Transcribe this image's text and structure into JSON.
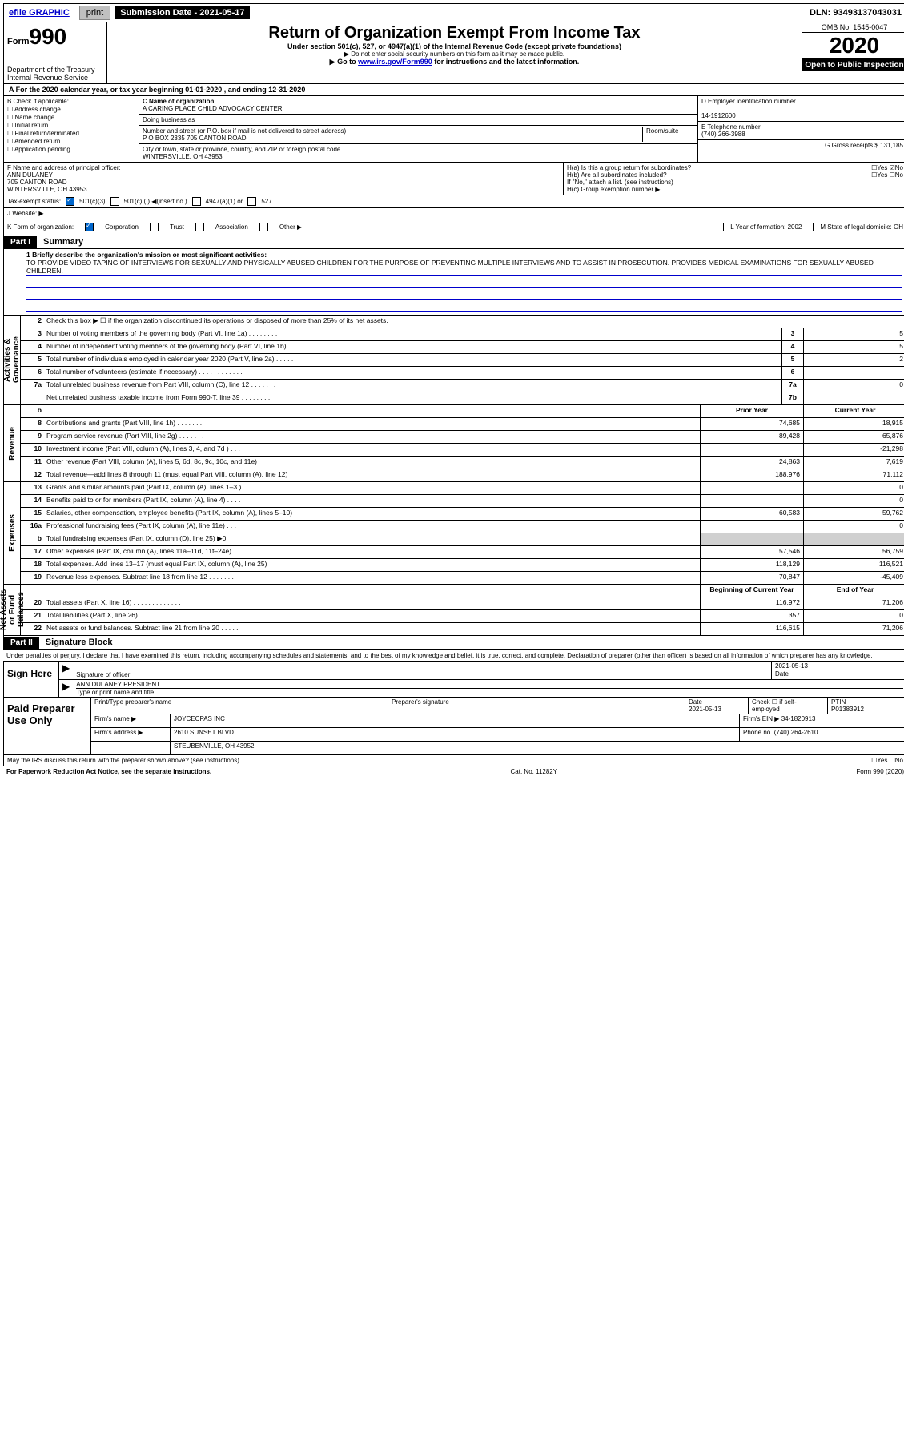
{
  "top": {
    "efile": "efile GRAPHIC",
    "print": "print",
    "sub_label": "Submission Date - 2021-05-17",
    "dln": "DLN: 93493137043031"
  },
  "hdr": {
    "form_small": "Form",
    "form_num": "990",
    "dept": "Department of the Treasury\nInternal Revenue Service",
    "title": "Return of Organization Exempt From Income Tax",
    "sub1": "Under section 501(c), 527, or 4947(a)(1) of the Internal Revenue Code (except private foundations)",
    "sub2": "▶ Do not enter social security numbers on this form as it may be made public.",
    "sub3a": "▶ Go to ",
    "sub3_link": "www.irs.gov/Form990",
    "sub3b": " for instructions and the latest information.",
    "omb": "OMB No. 1545-0047",
    "year": "2020",
    "otp": "Open to Public Inspection"
  },
  "rowA": "A For the 2020 calendar year, or tax year beginning 01-01-2020    , and ending 12-31-2020",
  "boxB": {
    "lbl": "B Check if applicable:",
    "addr": "Address change",
    "name": "Name change",
    "init": "Initial return",
    "final": "Final return/terminated",
    "amend": "Amended return",
    "app": "Application pending"
  },
  "boxC": {
    "name_lbl": "C Name of organization",
    "name": "A CARING PLACE CHILD ADVOCACY CENTER",
    "dba_lbl": "Doing business as",
    "street_lbl": "Number and street (or P.O. box if mail is not delivered to street address)",
    "room_lbl": "Room/suite",
    "street": "P O BOX 2335 705 CANTON ROAD",
    "city_lbl": "City or town, state or province, country, and ZIP or foreign postal code",
    "city": "WINTERSVILLE, OH  43953"
  },
  "boxDE": {
    "d_lbl": "D Employer identification number",
    "d_val": "14-1912600",
    "e_lbl": "E Telephone number",
    "e_val": "(740) 266-3988",
    "g_lbl": "G Gross receipts $",
    "g_val": "131,185"
  },
  "boxF": {
    "lbl": "F  Name and address of principal officer:",
    "name": "ANN DULANEY",
    "addr1": "705 CANTON ROAD",
    "addr2": "WINTERSVILLE, OH  43953"
  },
  "boxH": {
    "ha": "H(a)  Is this a group return for subordinates?",
    "hb": "H(b)  Are all subordinates included?",
    "hb_note": "If \"No,\" attach a list. (see instructions)",
    "hc": "H(c)  Group exemption number ▶",
    "yes": "Yes",
    "no": "No"
  },
  "rowI": {
    "lbl": "Tax-exempt status:",
    "o1": "501(c)(3)",
    "o2": "501(c) (   ) ◀(insert no.)",
    "o3": "4947(a)(1) or",
    "o4": "527"
  },
  "rowJ": {
    "lbl": "J   Website: ▶"
  },
  "rowK": {
    "lbl": "K Form of organization:",
    "corp": "Corporation",
    "trust": "Trust",
    "assoc": "Association",
    "other": "Other ▶",
    "l": "L Year of formation: 2002",
    "m": "M State of legal domicile: OH"
  },
  "part1": {
    "hdr": "Part I",
    "title": "Summary",
    "l1_lbl": "1  Briefly describe the organization's mission or most significant activities:",
    "l1_txt": "TO PROVIDE VIDEO TAPING OF INTERVIEWS FOR SEXUALLY AND PHYSICALLY ABUSED CHILDREN FOR THE PURPOSE OF PREVENTING MULTIPLE INTERVIEWS AND TO ASSIST IN PROSECUTION. PROVIDES MEDICAL EXAMINATIONS FOR SEXUALLY ABUSED CHILDREN.",
    "l2": "Check this box ▶ ☐  if the organization discontinued its operations or disposed of more than 25% of its net assets.",
    "lines_gov": [
      {
        "n": "3",
        "d": "Number of voting members of the governing body (Part VI, line 1a)  .   .   .   .   .   .   .   .",
        "b": "3",
        "v": "5"
      },
      {
        "n": "4",
        "d": "Number of independent voting members of the governing body (Part VI, line 1b)  .   .   .   .",
        "b": "4",
        "v": "5"
      },
      {
        "n": "5",
        "d": "Total number of individuals employed in calendar year 2020 (Part V, line 2a)  .   .   .   .   .",
        "b": "5",
        "v": "2"
      },
      {
        "n": "6",
        "d": "Total number of volunteers (estimate if necessary)   .   .   .   .   .   .   .   .   .   .   .   .",
        "b": "6",
        "v": ""
      },
      {
        "n": "7a",
        "d": "Total unrelated business revenue from Part VIII, column (C), line 12   .   .   .   .   .   .   .",
        "b": "7a",
        "v": "0"
      },
      {
        "n": "",
        "d": "Net unrelated business taxable income from Form 990-T, line 39   .   .   .   .   .   .   .   .",
        "b": "7b",
        "v": ""
      }
    ],
    "col_py": "Prior Year",
    "col_cy": "Current Year",
    "lines_rev": [
      {
        "n": "8",
        "d": "Contributions and grants (Part VIII, line 1h)   .   .   .   .   .   .   .",
        "py": "74,685",
        "cy": "18,915"
      },
      {
        "n": "9",
        "d": "Program service revenue (Part VIII, line 2g)   .   .   .   .   .   .   .",
        "py": "89,428",
        "cy": "65,876"
      },
      {
        "n": "10",
        "d": "Investment income (Part VIII, column (A), lines 3, 4, and 7d )   .   .   .",
        "py": "",
        "cy": "-21,298"
      },
      {
        "n": "11",
        "d": "Other revenue (Part VIII, column (A), lines 5, 6d, 8c, 9c, 10c, and 11e)",
        "py": "24,863",
        "cy": "7,619"
      },
      {
        "n": "12",
        "d": "Total revenue—add lines 8 through 11 (must equal Part VIII, column (A), line 12)",
        "py": "188,976",
        "cy": "71,112"
      }
    ],
    "lines_exp": [
      {
        "n": "13",
        "d": "Grants and similar amounts paid (Part IX, column (A), lines 1–3 )  .   .   .",
        "py": "",
        "cy": "0"
      },
      {
        "n": "14",
        "d": "Benefits paid to or for members (Part IX, column (A), line 4)   .   .   .   .",
        "py": "",
        "cy": "0"
      },
      {
        "n": "15",
        "d": "Salaries, other compensation, employee benefits (Part IX, column (A), lines 5–10)",
        "py": "60,583",
        "cy": "59,762"
      },
      {
        "n": "16a",
        "d": "Professional fundraising fees (Part IX, column (A), line 11e)   .   .   .   .",
        "py": "",
        "cy": "0"
      },
      {
        "n": "b",
        "d": "Total fundraising expenses (Part IX, column (D), line 25) ▶0",
        "py": "grey",
        "cy": "grey"
      },
      {
        "n": "17",
        "d": "Other expenses (Part IX, column (A), lines 11a–11d, 11f–24e)   .   .   .   .",
        "py": "57,546",
        "cy": "56,759"
      },
      {
        "n": "18",
        "d": "Total expenses. Add lines 13–17 (must equal Part IX, column (A), line 25)",
        "py": "118,129",
        "cy": "116,521"
      },
      {
        "n": "19",
        "d": "Revenue less expenses. Subtract line 18 from line 12   .   .   .   .   .   .   .",
        "py": "70,847",
        "cy": "-45,409"
      }
    ],
    "col_bcy": "Beginning of Current Year",
    "col_eoy": "End of Year",
    "lines_net": [
      {
        "n": "20",
        "d": "Total assets (Part X, line 16)  .   .   .   .   .   .   .   .   .   .   .   .   .",
        "py": "116,972",
        "cy": "71,206"
      },
      {
        "n": "21",
        "d": "Total liabilities (Part X, line 26)  .   .   .   .   .   .   .   .   .   .   .   .",
        "py": "357",
        "cy": "0"
      },
      {
        "n": "22",
        "d": "Net assets or fund balances. Subtract line 21 from line 20   .   .   .   .   .",
        "py": "116,615",
        "cy": "71,206"
      }
    ],
    "vert_gov": "Activities & Governance",
    "vert_rev": "Revenue",
    "vert_exp": "Expenses",
    "vert_net": "Net Assets or Fund Balances"
  },
  "part2": {
    "hdr": "Part II",
    "title": "Signature Block",
    "decl": "Under penalties of perjury, I declare that I have examined this return, including accompanying schedules and statements, and to the best of my knowledge and belief, it is true, correct, and complete. Declaration of preparer (other than officer) is based on all information of which preparer has any knowledge.",
    "sign_here": "Sign Here",
    "sig_of": "Signature of officer",
    "date_lbl": "Date",
    "date": "2021-05-13",
    "name": "ANN DULANEY PRESIDENT",
    "name_lbl": "Type or print name and title",
    "paid": "Paid Preparer Use Only",
    "pt_name_lbl": "Print/Type preparer's name",
    "pt_sig_lbl": "Preparer's signature",
    "pt_date": "2021-05-13",
    "pt_check": "Check ☐ if self-employed",
    "ptin_lbl": "PTIN",
    "ptin": "P01383912",
    "firm_lbl": "Firm's name    ▶",
    "firm": "JOYCECPAS INC",
    "firm_ein_lbl": "Firm's EIN ▶",
    "firm_ein": "34-1820913",
    "firm_addr_lbl": "Firm's address ▶",
    "firm_addr1": "2610 SUNSET BLVD",
    "firm_addr2": "STEUBENVILLE, OH  43952",
    "phone_lbl": "Phone no.",
    "phone": "(740) 264-2610",
    "discuss": "May the IRS discuss this return with the preparer shown above? (see instructions)   .   .   .   .   .   .   .   .   .   .",
    "yes": "Yes",
    "no": "No"
  },
  "footer": {
    "l": "For Paperwork Reduction Act Notice, see the separate instructions.",
    "m": "Cat. No. 11282Y",
    "r": "Form 990 (2020)"
  }
}
